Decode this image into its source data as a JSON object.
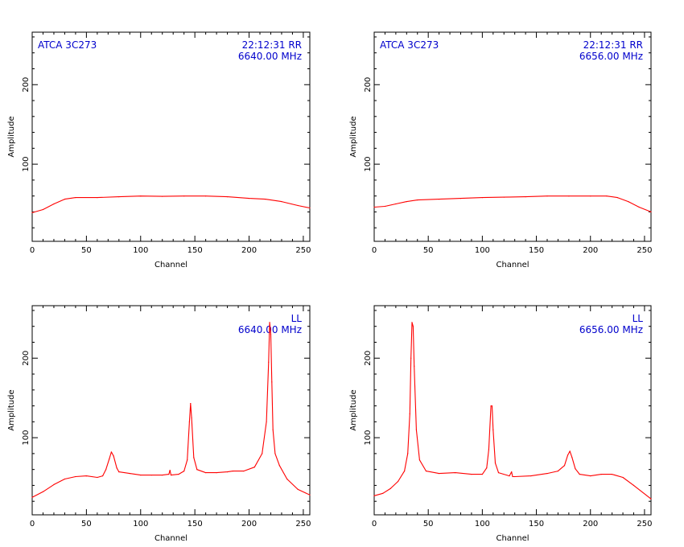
{
  "colors": {
    "axis": "#000000",
    "trace": "#ff0000",
    "annotation": "#0000cc"
  },
  "chart_data": [
    {
      "type": "line",
      "source_label": "ATCA 3C273",
      "time_label": "22:12:31  RR",
      "freq_label": "6640.00 MHz",
      "xlabel": "Channel",
      "ylabel": "Amplitude",
      "xlim": [
        0,
        256
      ],
      "ylim": [
        3,
        266
      ],
      "xticks": [
        0,
        50,
        100,
        150,
        200,
        250
      ],
      "yticks": [
        100,
        200
      ],
      "x": [
        0,
        10,
        20,
        30,
        40,
        60,
        80,
        100,
        120,
        140,
        160,
        180,
        200,
        215,
        230,
        245,
        256
      ],
      "y": [
        39,
        43,
        50,
        56,
        58,
        58,
        59,
        60,
        59.5,
        60,
        60,
        59,
        57,
        56,
        53,
        48,
        45
      ],
      "grid": false
    },
    {
      "type": "line",
      "source_label": "ATCA 3C273",
      "time_label": "22:12:31  RR",
      "freq_label": "6656.00 MHz",
      "xlabel": "Channel",
      "ylabel": "Amplitude",
      "xlim": [
        0,
        256
      ],
      "ylim": [
        3,
        266
      ],
      "xticks": [
        0,
        50,
        100,
        150,
        200,
        250
      ],
      "yticks": [
        100,
        200
      ],
      "x": [
        0,
        10,
        20,
        30,
        40,
        60,
        80,
        100,
        120,
        140,
        160,
        180,
        200,
        215,
        225,
        235,
        245,
        256
      ],
      "y": [
        46,
        47,
        50,
        53,
        55,
        56,
        57,
        58,
        58.5,
        59,
        60,
        60,
        60,
        60,
        58,
        53,
        46,
        40
      ],
      "grid": false
    },
    {
      "type": "line",
      "source_label": "",
      "time_label": "LL",
      "freq_label": "6640.00 MHz",
      "xlabel": "Channel",
      "ylabel": "Amplitude",
      "xlim": [
        0,
        256
      ],
      "ylim": [
        3,
        266
      ],
      "xticks": [
        0,
        50,
        100,
        150,
        200,
        250
      ],
      "yticks": [
        100,
        200
      ],
      "x": [
        0,
        10,
        20,
        30,
        40,
        50,
        60,
        65,
        68,
        71,
        73,
        75,
        78,
        80,
        90,
        100,
        110,
        120,
        126,
        127,
        128,
        135,
        140,
        143,
        145,
        146,
        147,
        149,
        152,
        160,
        170,
        180,
        185,
        195,
        205,
        212,
        216,
        218,
        219,
        220,
        221,
        222,
        224,
        228,
        235,
        245,
        256
      ],
      "y": [
        25,
        32,
        41,
        48,
        51,
        52,
        50,
        52,
        60,
        73,
        82,
        77,
        62,
        57,
        55,
        53,
        53,
        53,
        54,
        59,
        53,
        54,
        58,
        72,
        120,
        143,
        125,
        75,
        60,
        56,
        56,
        57,
        58,
        58,
        63,
        80,
        120,
        195,
        245,
        230,
        170,
        110,
        80,
        65,
        48,
        35,
        28
      ],
      "grid": false
    },
    {
      "type": "line",
      "source_label": "",
      "time_label": "LL",
      "freq_label": "6656.00 MHz",
      "xlabel": "Channel",
      "ylabel": "Amplitude",
      "xlim": [
        0,
        256
      ],
      "ylim": [
        3,
        266
      ],
      "xticks": [
        0,
        50,
        100,
        150,
        200,
        250
      ],
      "yticks": [
        100,
        200
      ],
      "x": [
        0,
        8,
        15,
        22,
        28,
        31,
        33,
        34,
        35,
        36,
        37,
        39,
        42,
        48,
        60,
        75,
        90,
        100,
        104,
        106,
        108,
        109,
        110,
        112,
        115,
        125,
        127,
        128,
        130,
        145,
        160,
        170,
        176,
        179,
        181,
        183,
        186,
        190,
        200,
        210,
        220,
        230,
        240,
        256
      ],
      "y": [
        27,
        30,
        36,
        45,
        58,
        80,
        130,
        200,
        245,
        240,
        190,
        110,
        72,
        58,
        55,
        56,
        54,
        54,
        62,
        85,
        140,
        140,
        110,
        68,
        56,
        52,
        57,
        51,
        51,
        52,
        55,
        58,
        65,
        78,
        83,
        75,
        61,
        54,
        52,
        54,
        54,
        50,
        40,
        23
      ],
      "grid": false
    }
  ]
}
